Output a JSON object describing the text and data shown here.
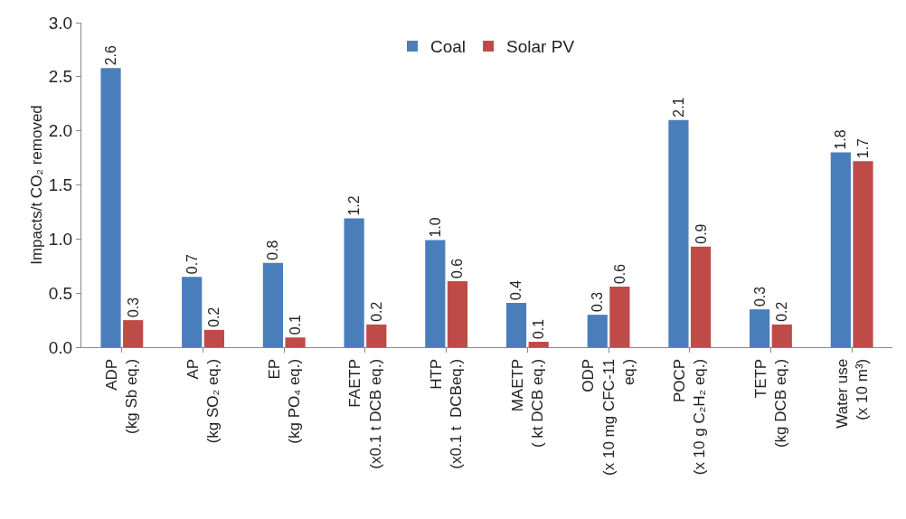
{
  "chart_data": {
    "type": "bar",
    "ylabel": "Impacts/t CO₂ removed",
    "categories": [
      "ADP\n(kg Sb eq.)",
      "AP\n(kg SO₂ eq.)",
      "EP\n(kg PO₄ eq.)",
      "FAETP\n(x0.1 t DCB eq.)",
      "HTP\n(x0.1 t  DCBeq.)",
      "MAETP\n( kt DCB eq.)",
      "ODP\n(x 10 mg CFC-11\neq.)",
      "POCP\n(x 10 g C₂H₂ eq.)",
      "TETP\n(kg DCB eq.)",
      "Water use\n(x 10 m³)"
    ],
    "series": [
      {
        "name": "Coal",
        "color": "#4a7ebb",
        "values": [
          2.58,
          0.65,
          0.78,
          1.19,
          0.99,
          0.41,
          0.3,
          2.1,
          0.35,
          1.8
        ],
        "value_labels": [
          "2.6",
          "0.7",
          "0.8",
          "1.2",
          "1.0",
          "0.4",
          "0.3",
          "2.1",
          "0.3",
          "1.8"
        ]
      },
      {
        "name": "Solar PV",
        "color": "#be4b48",
        "values": [
          0.25,
          0.16,
          0.09,
          0.21,
          0.61,
          0.05,
          0.56,
          0.93,
          0.21,
          1.72
        ],
        "value_labels": [
          "0.3",
          "0.2",
          "0.1",
          "0.2",
          "0.6",
          "0.1",
          "0.6",
          "0.9",
          "0.2",
          "1.7"
        ]
      }
    ],
    "ylim": [
      0,
      3
    ],
    "yticks": [
      {
        "value": 0,
        "label": "0.0"
      },
      {
        "value": 0.5,
        "label": "0.5"
      },
      {
        "value": 1,
        "label": "1.0"
      },
      {
        "value": 1.5,
        "label": "1.5"
      },
      {
        "value": 2,
        "label": "2.0"
      },
      {
        "value": 2.5,
        "label": "2.5"
      },
      {
        "value": 3,
        "label": "3.0"
      }
    ],
    "grid": false,
    "legend": "top"
  }
}
